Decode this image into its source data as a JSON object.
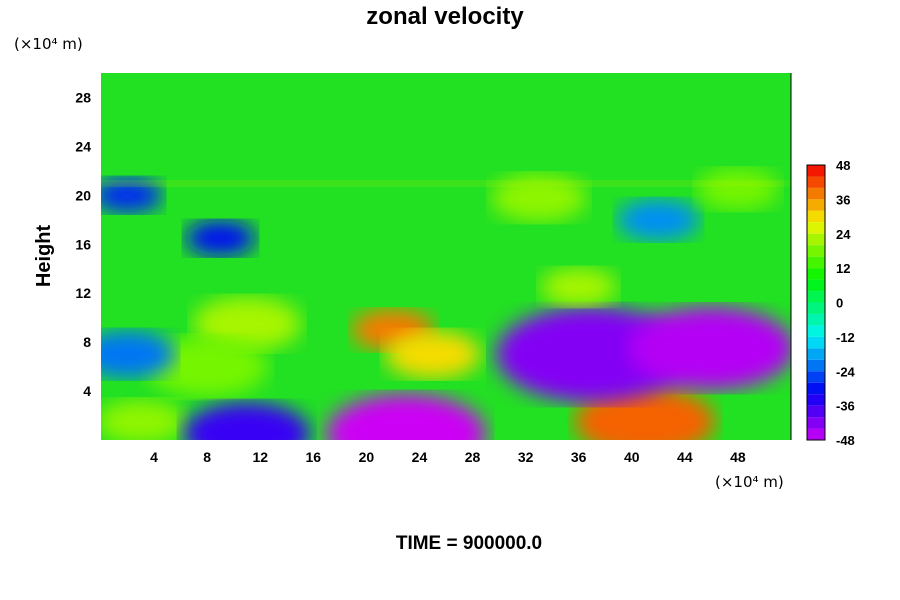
{
  "chart_data": {
    "type": "heatmap",
    "title": "zonal velocity",
    "ylabel": "Height",
    "x_units": "(×10⁴ m)",
    "y_units": "(×10⁴ m)",
    "xlim": [
      0,
      52
    ],
    "ylim": [
      0,
      30
    ],
    "x_ticks": [
      "4",
      "8",
      "12",
      "16",
      "20",
      "24",
      "28",
      "32",
      "36",
      "40",
      "44",
      "48"
    ],
    "y_ticks": [
      "4",
      "8",
      "12",
      "16",
      "20",
      "24",
      "28"
    ],
    "colorbar": {
      "min": -48,
      "max": 48,
      "step": 4,
      "ticks": [
        "48",
        "36",
        "24",
        "12",
        "0",
        "-12",
        "-24",
        "-36",
        "-48"
      ]
    },
    "field_features": [
      {
        "x": 3,
        "y": 1.5,
        "value": 20
      },
      {
        "x": 11,
        "y": 9.5,
        "value": 22
      },
      {
        "x": 8,
        "y": 6,
        "value": 18
      },
      {
        "x": 22,
        "y": 9,
        "value": 38
      },
      {
        "x": 25,
        "y": 7,
        "value": 30
      },
      {
        "x": 23,
        "y": 0.5,
        "value": -48
      },
      {
        "x": 11,
        "y": 0.5,
        "value": -36
      },
      {
        "x": 41,
        "y": 1.5,
        "value": 40
      },
      {
        "x": 37,
        "y": 7,
        "value": -42
      },
      {
        "x": 46,
        "y": 7.5,
        "value": -46
      },
      {
        "x": 2,
        "y": 7,
        "value": -22
      },
      {
        "x": 36,
        "y": 12.5,
        "value": 22
      },
      {
        "x": 33,
        "y": 19.8,
        "value": 20
      },
      {
        "x": 9,
        "y": 16.5,
        "value": -30
      },
      {
        "x": 42,
        "y": 18,
        "value": -20
      },
      {
        "x": 2,
        "y": 20,
        "value": -28
      },
      {
        "x": 48,
        "y": 20.5,
        "value": 18
      }
    ],
    "footer": "TIME = 900000.0"
  }
}
